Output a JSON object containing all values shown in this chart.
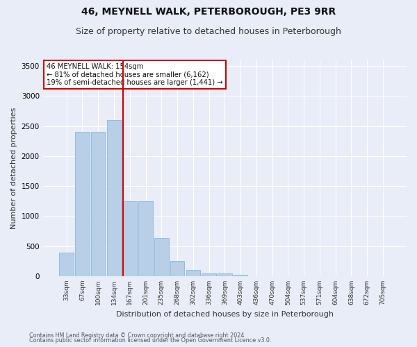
{
  "title": "46, MEYNELL WALK, PETERBOROUGH, PE3 9RR",
  "subtitle": "Size of property relative to detached houses in Peterborough",
  "xlabel": "Distribution of detached houses by size in Peterborough",
  "ylabel": "Number of detached properties",
  "footnote1": "Contains HM Land Registry data © Crown copyright and database right 2024.",
  "footnote2": "Contains public sector information licensed under the Open Government Licence v3.0.",
  "categories": [
    "33sqm",
    "67sqm",
    "100sqm",
    "134sqm",
    "167sqm",
    "201sqm",
    "235sqm",
    "268sqm",
    "302sqm",
    "336sqm",
    "369sqm",
    "403sqm",
    "436sqm",
    "470sqm",
    "504sqm",
    "537sqm",
    "571sqm",
    "604sqm",
    "638sqm",
    "672sqm",
    "705sqm"
  ],
  "values": [
    390,
    2400,
    2400,
    2600,
    1250,
    1250,
    640,
    250,
    100,
    50,
    40,
    25,
    0,
    0,
    0,
    0,
    0,
    0,
    0,
    0,
    0
  ],
  "bar_color": "#b8cfe8",
  "bar_edge_color": "#7aafd4",
  "vline_color": "#cc0000",
  "annotation_text": "46 MEYNELL WALK: 154sqm\n← 81% of detached houses are smaller (6,162)\n19% of semi-detached houses are larger (1,441) →",
  "annotation_box_color": "#ffffff",
  "annotation_box_edge": "#cc0000",
  "ylim": [
    0,
    3600
  ],
  "yticks": [
    0,
    500,
    1000,
    1500,
    2000,
    2500,
    3000,
    3500
  ],
  "background_color": "#e8edf8",
  "axes_background": "#e8edf8",
  "grid_color": "#ffffff",
  "title_fontsize": 10,
  "subtitle_fontsize": 9
}
